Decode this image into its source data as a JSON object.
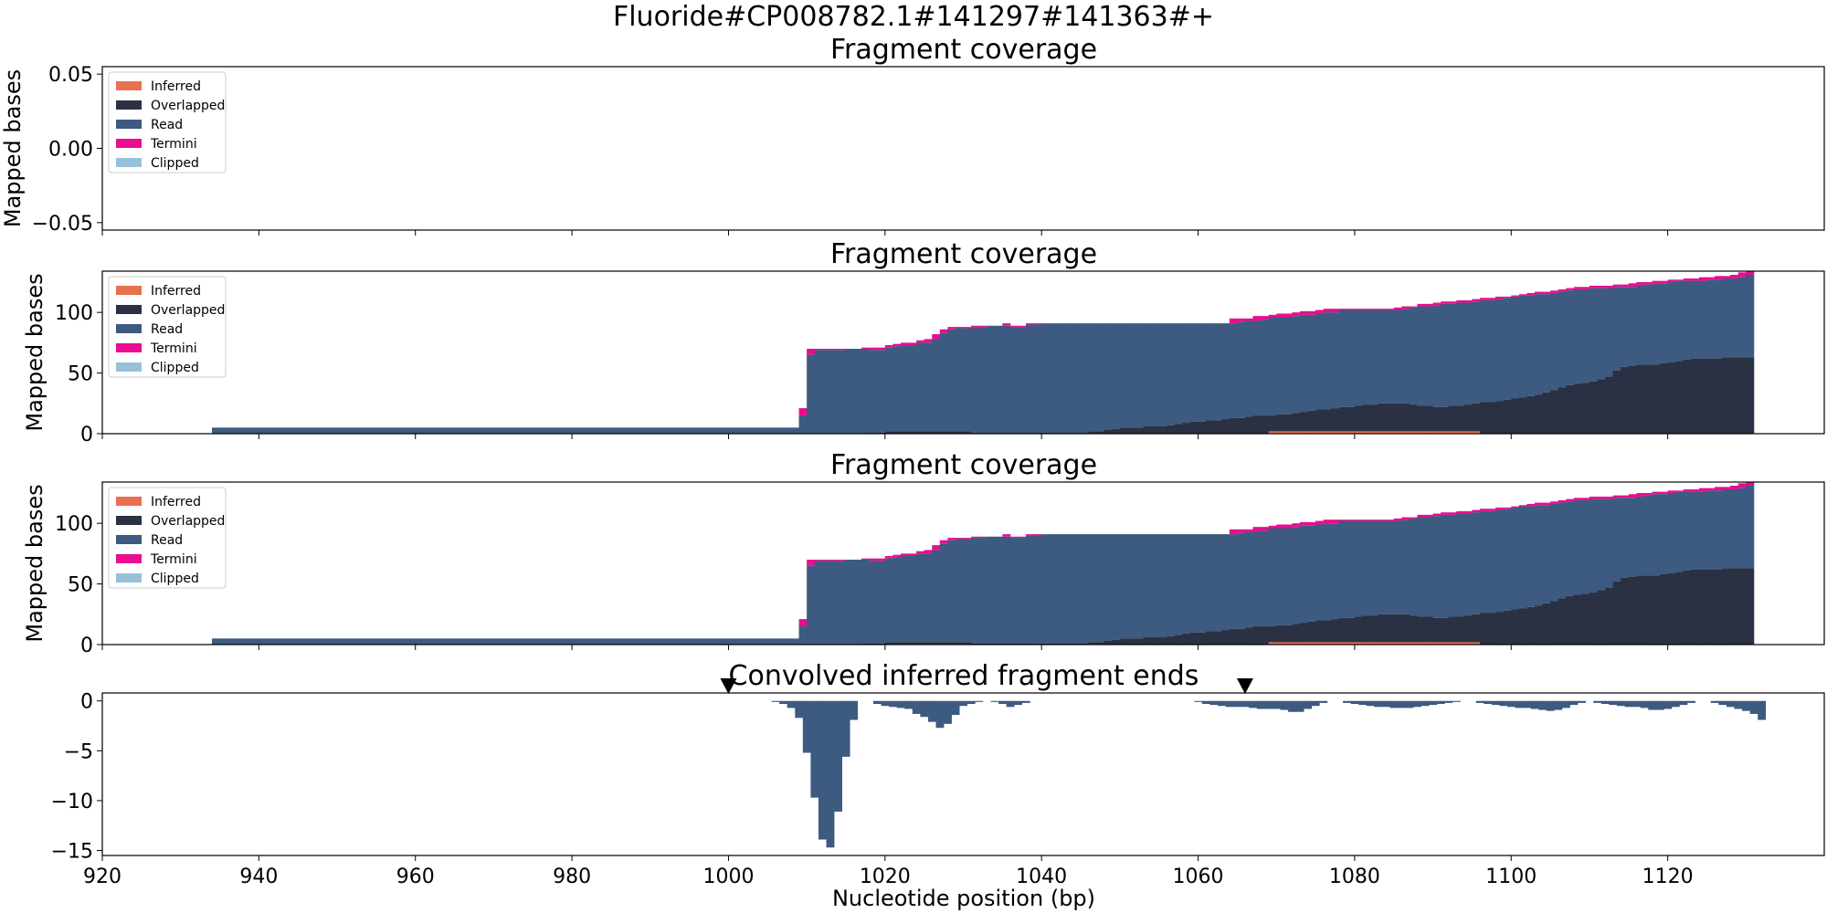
{
  "figure": {
    "suptitle": "Fluoride#CP008782.1#141297#141363#+",
    "xlabel": "Nucleotide position (bp)"
  },
  "colors": {
    "inferred": "#e8704e",
    "overlapped": "#2a3142",
    "read": "#3d5a80",
    "termini": "#ea0c91",
    "clipped": "#98c1d9",
    "marker": "#000000"
  },
  "chart_data": [
    {
      "type": "area",
      "title": "Fragment coverage",
      "ylabel": "Mapped bases",
      "xlim": [
        920,
        1140
      ],
      "ylim": [
        -0.055,
        0.055
      ],
      "yticks": [
        "0.05",
        "0.00",
        "−0.05"
      ],
      "legend": {
        "placement": "top-left",
        "entries": [
          "Inferred",
          "Overlapped",
          "Read",
          "Termini",
          "Clipped"
        ]
      },
      "series": []
    },
    {
      "type": "area",
      "title": "Fragment coverage",
      "ylabel": "Mapped bases",
      "xlim": [
        920,
        1140
      ],
      "ylim": [
        0,
        134
      ],
      "yticks": [
        "100",
        "50",
        "0"
      ],
      "legend": {
        "placement": "top-left",
        "entries": [
          "Inferred",
          "Overlapped",
          "Read",
          "Termini",
          "Clipped"
        ]
      },
      "stacked": true,
      "coverage_ref": "coverage"
    },
    {
      "type": "area",
      "title": "Fragment coverage",
      "ylabel": "Mapped bases",
      "xlim": [
        920,
        1140
      ],
      "ylim": [
        0,
        134
      ],
      "yticks": [
        "100",
        "50",
        "0"
      ],
      "legend": {
        "placement": "top-left",
        "entries": [
          "Inferred",
          "Overlapped",
          "Read",
          "Termini",
          "Clipped"
        ]
      },
      "stacked": true,
      "coverage_ref": "coverage"
    },
    {
      "type": "bar",
      "title": "Convolved inferred fragment ends",
      "xlabel": "Nucleotide position (bp)",
      "xlim": [
        920,
        1140
      ],
      "ylim": [
        -15.5,
        0.8
      ],
      "yticks": [
        "0",
        "−5",
        "−10",
        "−15"
      ],
      "xticks": [
        "920",
        "940",
        "960",
        "980",
        "1000",
        "1020",
        "1040",
        "1060",
        "1080",
        "1100",
        "1120"
      ],
      "markers_x": [
        1000,
        1066
      ],
      "x": [
        1006,
        1007,
        1008,
        1009,
        1010,
        1011,
        1012,
        1013,
        1014,
        1015,
        1016,
        1019,
        1020,
        1021,
        1022,
        1023,
        1024,
        1025,
        1026,
        1027,
        1028,
        1029,
        1030,
        1031,
        1032,
        1034,
        1035,
        1036,
        1037,
        1038,
        1060,
        1061,
        1062,
        1063,
        1064,
        1065,
        1066,
        1067,
        1068,
        1069,
        1070,
        1071,
        1072,
        1073,
        1074,
        1075,
        1076,
        1079,
        1080,
        1081,
        1082,
        1083,
        1084,
        1085,
        1086,
        1087,
        1088,
        1089,
        1090,
        1091,
        1092,
        1093,
        1096,
        1097,
        1098,
        1099,
        1100,
        1101,
        1102,
        1103,
        1104,
        1105,
        1106,
        1107,
        1108,
        1109,
        1111,
        1112,
        1113,
        1114,
        1115,
        1116,
        1117,
        1118,
        1119,
        1120,
        1121,
        1122,
        1123,
        1126,
        1127,
        1128,
        1129,
        1130,
        1131,
        1132
      ],
      "values": [
        -0.1,
        -0.3,
        -0.7,
        -1.7,
        -5.2,
        -9.7,
        -13.9,
        -14.7,
        -11.1,
        -5.6,
        -1.9,
        -0.3,
        -0.5,
        -0.6,
        -0.7,
        -0.8,
        -1.3,
        -1.6,
        -2.1,
        -2.7,
        -2.3,
        -1.4,
        -0.5,
        -0.3,
        -0.1,
        -0.1,
        -0.3,
        -0.6,
        -0.4,
        -0.2,
        -0.1,
        -0.3,
        -0.4,
        -0.5,
        -0.6,
        -0.6,
        -0.6,
        -0.7,
        -0.8,
        -0.8,
        -0.8,
        -0.9,
        -1.1,
        -1.1,
        -0.8,
        -0.5,
        -0.2,
        -0.2,
        -0.3,
        -0.4,
        -0.5,
        -0.6,
        -0.6,
        -0.7,
        -0.7,
        -0.7,
        -0.6,
        -0.5,
        -0.4,
        -0.3,
        -0.2,
        -0.1,
        -0.2,
        -0.3,
        -0.4,
        -0.5,
        -0.6,
        -0.7,
        -0.7,
        -0.8,
        -0.9,
        -1.0,
        -0.9,
        -0.7,
        -0.4,
        -0.2,
        -0.2,
        -0.3,
        -0.4,
        -0.5,
        -0.6,
        -0.6,
        -0.7,
        -0.9,
        -0.9,
        -0.8,
        -0.6,
        -0.4,
        -0.2,
        -0.2,
        -0.4,
        -0.6,
        -0.8,
        -1.0,
        -1.3,
        -1.9
      ]
    }
  ],
  "coverage": {
    "x_steps": [
      934,
      1009,
      1010,
      1011,
      1014,
      1015,
      1016,
      1017,
      1018,
      1019,
      1020,
      1021,
      1022,
      1023,
      1024,
      1025,
      1026,
      1027,
      1028,
      1029,
      1030,
      1031,
      1032,
      1033,
      1034,
      1035,
      1036,
      1037,
      1038,
      1039,
      1040,
      1041,
      1042,
      1043,
      1044,
      1045,
      1046,
      1047,
      1048,
      1049,
      1050,
      1051,
      1052,
      1053,
      1054,
      1055,
      1056,
      1057,
      1058,
      1059,
      1060,
      1061,
      1062,
      1063,
      1064,
      1065,
      1066,
      1067,
      1068,
      1069,
      1070,
      1071,
      1072,
      1073,
      1074,
      1075,
      1076,
      1077,
      1078,
      1079,
      1080,
      1081,
      1082,
      1083,
      1084,
      1085,
      1086,
      1087,
      1088,
      1089,
      1090,
      1091,
      1092,
      1093,
      1094,
      1095,
      1096,
      1097,
      1098,
      1099,
      1100,
      1101,
      1102,
      1103,
      1104,
      1105,
      1106,
      1107,
      1108,
      1109,
      1110,
      1111,
      1112,
      1113,
      1114,
      1115,
      1116,
      1117,
      1118,
      1119,
      1120,
      1121,
      1122,
      1123,
      1124,
      1125,
      1126,
      1127,
      1128,
      1129,
      1130,
      1131,
      1132
    ],
    "overlapped": [
      0,
      0,
      0,
      0,
      0,
      0,
      0,
      1,
      1,
      1,
      2,
      2,
      2,
      2,
      2,
      2,
      2,
      2,
      2,
      2,
      2,
      1,
      1,
      1,
      1,
      1,
      1,
      1,
      1,
      1,
      1,
      1,
      1,
      1,
      1,
      1,
      2,
      2,
      3,
      4,
      5,
      5,
      5,
      6,
      6,
      6,
      7,
      8,
      9,
      10,
      10,
      11,
      11,
      12,
      13,
      13,
      14,
      15,
      15,
      15,
      16,
      16,
      17,
      18,
      19,
      20,
      20,
      21,
      22,
      22,
      23,
      24,
      24,
      25,
      25,
      25,
      25,
      24,
      23,
      23,
      22,
      22,
      23,
      23,
      24,
      25,
      26,
      26,
      27,
      28,
      29,
      30,
      31,
      32,
      34,
      36,
      38,
      40,
      41,
      42,
      43,
      45,
      47,
      52,
      55,
      56,
      57,
      57,
      57,
      58,
      59,
      60,
      61,
      62,
      62,
      62,
      62,
      63,
      63,
      63,
      63
    ],
    "inferred": [
      0,
      0,
      0,
      0,
      0,
      0,
      0,
      0,
      0,
      0,
      0,
      0,
      0,
      0,
      0,
      0,
      0,
      0,
      0,
      0,
      0,
      0,
      0,
      0,
      0,
      0,
      0,
      0,
      0,
      0,
      0,
      0,
      0,
      0,
      0,
      0,
      0,
      0,
      0,
      0,
      0,
      0,
      0,
      0,
      0,
      0,
      0,
      0,
      0,
      0,
      0,
      0,
      0,
      0,
      0,
      0,
      0,
      0,
      0,
      2,
      2,
      2,
      2,
      2,
      2,
      2,
      2,
      2,
      2,
      2,
      2,
      2,
      2,
      2,
      2,
      2,
      2,
      2,
      2,
      2,
      2,
      2,
      2,
      2,
      2,
      2,
      0,
      0,
      0,
      0,
      0,
      0,
      0,
      0,
      0,
      0,
      0,
      0,
      0,
      0,
      0,
      0,
      0,
      0,
      0,
      0,
      0,
      0,
      0,
      0,
      0,
      0,
      0,
      0,
      0,
      0,
      0,
      0,
      0,
      0,
      0
    ],
    "read_top": [
      5,
      15,
      65,
      69,
      69,
      70,
      70,
      70,
      69,
      69,
      71,
      72,
      73,
      73,
      75,
      75,
      78,
      83,
      86,
      87,
      87,
      88,
      88,
      89,
      89,
      89,
      88,
      88,
      90,
      90,
      91,
      91,
      91,
      91,
      91,
      91,
      91,
      91,
      91,
      91,
      91,
      91,
      91,
      91,
      91,
      91,
      91,
      91,
      91,
      91,
      91,
      91,
      91,
      91,
      91,
      92,
      93,
      93,
      94,
      96,
      96,
      96,
      97,
      98,
      98,
      99,
      100,
      100,
      102,
      102,
      102,
      102,
      102,
      102,
      102,
      102,
      103,
      104,
      105,
      105,
      106,
      107,
      107,
      108,
      108,
      109,
      110,
      110,
      111,
      112,
      113,
      114,
      114,
      115,
      115,
      116,
      117,
      118,
      119,
      119,
      120,
      120,
      120,
      121,
      121,
      121,
      122,
      123,
      124,
      124,
      125,
      126,
      126,
      126,
      126,
      127,
      127,
      128,
      128,
      129,
      131
    ],
    "termini_top": [
      5,
      21,
      70,
      70,
      70,
      70,
      70,
      71,
      71,
      71,
      73,
      74,
      75,
      75,
      77,
      78,
      82,
      86,
      88,
      88,
      88,
      89,
      89,
      89,
      89,
      91,
      89,
      89,
      91,
      91,
      91,
      91,
      91,
      91,
      91,
      91,
      91,
      91,
      91,
      91,
      91,
      91,
      91,
      91,
      91,
      91,
      91,
      91,
      91,
      91,
      91,
      91,
      91,
      91,
      95,
      95,
      95,
      97,
      97,
      98,
      99,
      99,
      100,
      101,
      101,
      102,
      103,
      103,
      103,
      103,
      103,
      103,
      103,
      103,
      103,
      104,
      105,
      105,
      107,
      107,
      108,
      109,
      109,
      110,
      110,
      111,
      112,
      112,
      113,
      113,
      114,
      115,
      116,
      117,
      117,
      118,
      119,
      120,
      121,
      121,
      122,
      122,
      122,
      123,
      123,
      124,
      125,
      125,
      126,
      126,
      127,
      127,
      128,
      128,
      129,
      129,
      130,
      130,
      131,
      133,
      134
    ]
  }
}
